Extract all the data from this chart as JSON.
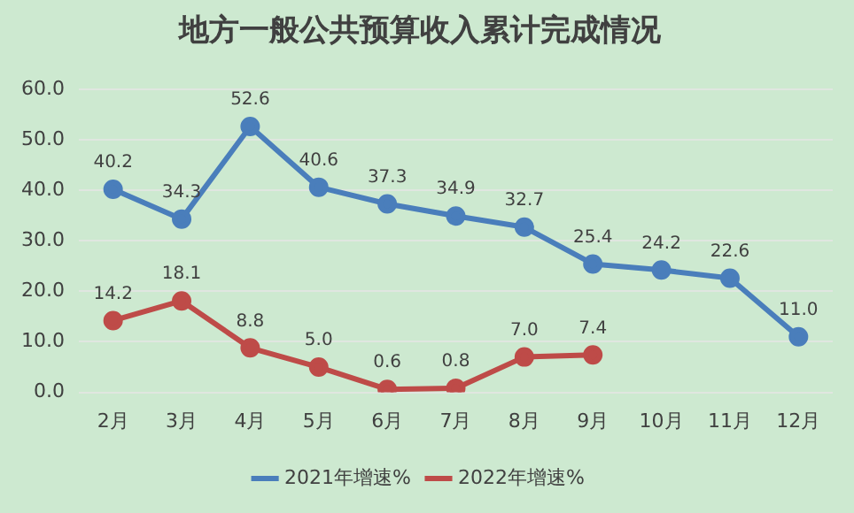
{
  "chart_data": {
    "type": "line",
    "title": "地方一般公共预算收入累计完成情况",
    "categories": [
      "2月",
      "3月",
      "4月",
      "5月",
      "6月",
      "7月",
      "8月",
      "9月",
      "10月",
      "11月",
      "12月"
    ],
    "series": [
      {
        "name": "2021年增速%",
        "color": "#4a7ebb",
        "values": [
          40.2,
          34.3,
          52.6,
          40.6,
          37.3,
          34.9,
          32.7,
          25.4,
          24.2,
          22.6,
          11.0
        ],
        "value_labels": [
          "40.2",
          "34.3",
          "52.6",
          "40.6",
          "37.3",
          "34.9",
          "32.7",
          "25.4",
          "24.2",
          "22.6",
          "11.0"
        ]
      },
      {
        "name": "2022年增速%",
        "color": "#be4b48",
        "values": [
          14.2,
          18.1,
          8.8,
          5.0,
          0.6,
          0.8,
          7.0,
          7.4,
          null,
          null,
          null
        ],
        "value_labels": [
          "14.2",
          "18.1",
          "8.8",
          "5.0",
          "0.6",
          "0.8",
          "7.0",
          "7.4",
          null,
          null,
          null
        ]
      }
    ],
    "ylim": [
      0,
      60
    ],
    "yticks": [
      {
        "value": 0,
        "label": "0.0"
      },
      {
        "value": 10,
        "label": "10.0"
      },
      {
        "value": 20,
        "label": "20.0"
      },
      {
        "value": 30,
        "label": "30.0"
      },
      {
        "value": 40,
        "label": "40.0"
      },
      {
        "value": 50,
        "label": "50.0"
      },
      {
        "value": 60,
        "label": "60.0"
      }
    ],
    "grid": "y",
    "legend": "bottom",
    "marker": "circle",
    "line_style": "solid"
  }
}
